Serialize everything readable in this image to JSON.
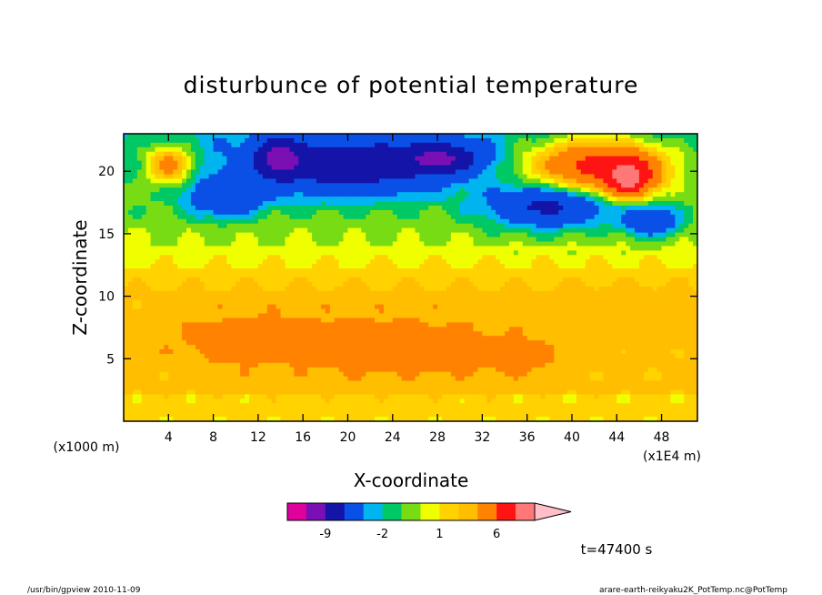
{
  "chart_data": {
    "type": "heatmap",
    "title": "disturbunce of potential temperature",
    "xlabel": "X-coordinate",
    "ylabel": "Z-coordinate",
    "x_unit": "(x1E4 m)",
    "y_unit": "(x1000 m)",
    "xlim": [
      0,
      51.2
    ],
    "ylim": [
      0,
      23
    ],
    "xticks": [
      4,
      8,
      12,
      16,
      20,
      24,
      28,
      32,
      36,
      40,
      44,
      48
    ],
    "yticks": [
      5,
      10,
      15,
      20
    ],
    "time_label": "t=47400 s",
    "colorbar": {
      "levels": [
        -15,
        -12,
        -9,
        -6,
        -3,
        -2,
        -1,
        0,
        1,
        2,
        3,
        6,
        9,
        12
      ],
      "colors": [
        "#e0009c",
        "#7a0fb4",
        "#1414a8",
        "#0a50e6",
        "#00b4f0",
        "#00c864",
        "#78dc14",
        "#f0ff00",
        "#ffd200",
        "#ffbe00",
        "#ff8200",
        "#ff1414",
        "#ff7878",
        "#ffbec8"
      ],
      "tick_labels": [
        "-9",
        "-2",
        "1",
        "6"
      ]
    },
    "fields": [
      {
        "x": 20,
        "z": 20.5,
        "rx": 9,
        "rz": 2.4,
        "value": -8
      },
      {
        "x": 28,
        "z": 21,
        "rx": 4,
        "rz": 1.2,
        "value": -10
      },
      {
        "x": 9,
        "z": 18,
        "rx": 3.5,
        "rz": 1.6,
        "value": -6
      },
      {
        "x": 38,
        "z": 17.3,
        "rx": 5.5,
        "rz": 1.8,
        "value": -7
      },
      {
        "x": 47,
        "z": 16,
        "rx": 2.5,
        "rz": 1.2,
        "value": -6
      },
      {
        "x": 14,
        "z": 21,
        "rx": 2,
        "rz": 1.5,
        "value": -11
      },
      {
        "x": 42.5,
        "z": 20.5,
        "rx": 6,
        "rz": 2,
        "value": 7
      },
      {
        "x": 45,
        "z": 19.5,
        "rx": 2.2,
        "rz": 1.4,
        "value": 11
      },
      {
        "x": 4,
        "z": 20.5,
        "rx": 2,
        "rz": 1.5,
        "value": 4
      },
      {
        "x": 21,
        "z": 6.5,
        "rx": 16,
        "rz": 3,
        "value": 3.2
      },
      {
        "x": 11,
        "z": 6.5,
        "rx": 5,
        "rz": 1.6,
        "value": 4
      },
      {
        "x": 35,
        "z": 5.2,
        "rx": 3,
        "rz": 1.1,
        "value": 4
      },
      {
        "x": 45,
        "z": 8.5,
        "rx": 6,
        "rz": 2,
        "value": 3
      },
      {
        "x": 26,
        "z": 5.5,
        "rx": 8,
        "rz": 1.8,
        "value": 3.5
      }
    ]
  },
  "footer": {
    "left": "/usr/bin/gpview  2010-11-09",
    "right": "arare-earth-reikyaku2K_PotTemp.nc@PotTemp"
  }
}
